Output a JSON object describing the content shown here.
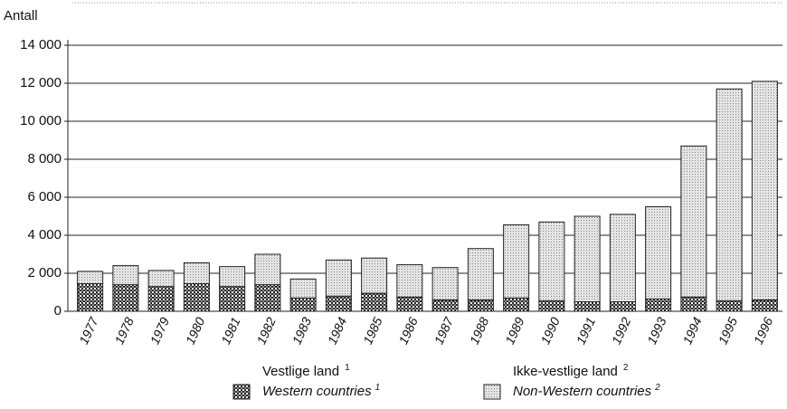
{
  "chart_data": {
    "type": "stacked-bar",
    "y_label": "Antall",
    "categories": [
      "1977",
      "1978",
      "1979",
      "1980",
      "1981",
      "1982",
      "1983",
      "1984",
      "1985",
      "1986",
      "1987",
      "1988",
      "1989",
      "1990",
      "1991",
      "1992",
      "1993",
      "1994",
      "1995",
      "1996"
    ],
    "series": [
      {
        "name": "Vestlige land",
        "name_en": "Western countries",
        "note": "1",
        "color": "#2a2a2a",
        "pattern": "crosshatch",
        "values": [
          1450,
          1400,
          1300,
          1450,
          1300,
          1400,
          700,
          800,
          950,
          750,
          600,
          600,
          700,
          550,
          500,
          500,
          650,
          750,
          550,
          600
        ]
      },
      {
        "name": "Ikke-vestlige land",
        "name_en": "Non-Western countries",
        "note": "2",
        "color": "#e4e4e4",
        "pattern": "dots",
        "values": [
          650,
          1000,
          850,
          1100,
          1050,
          1600,
          1000,
          1900,
          1850,
          1700,
          1700,
          2700,
          3850,
          4150,
          4500,
          4600,
          4850,
          7950,
          11150,
          11500
        ]
      }
    ],
    "ylim": [
      0,
      14000
    ],
    "yticks": [
      0,
      {
        "value": 2000,
        "label": "2 000"
      },
      {
        "value": 4000,
        "label": "4 000"
      },
      {
        "value": 6000,
        "label": "6 000"
      },
      {
        "value": 8000,
        "label": "8 000"
      },
      {
        "value": 10000,
        "label": "10 000"
      },
      {
        "value": 12000,
        "label": "12 000"
      },
      {
        "value": 14000,
        "label": "14 000"
      }
    ],
    "grid": true
  }
}
